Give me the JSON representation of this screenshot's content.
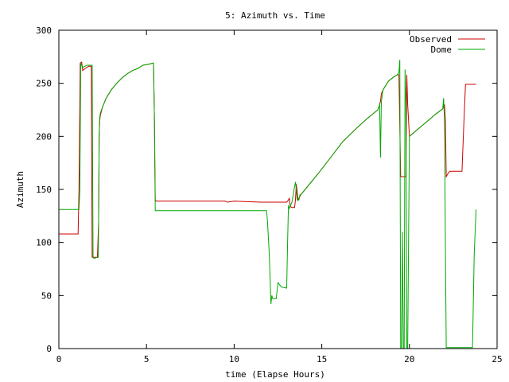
{
  "chart_data": {
    "type": "line",
    "title": "5: Azimuth vs. Time",
    "xlabel": "time (Elapse Hours)",
    "ylabel": "Azimuth",
    "xlim": [
      0,
      25
    ],
    "ylim": [
      0,
      300
    ],
    "xticks": [
      0,
      5,
      10,
      15,
      20,
      25
    ],
    "yticks": [
      0,
      50,
      100,
      150,
      200,
      250,
      300
    ],
    "grid": false,
    "legend_position": "top-right",
    "series": [
      {
        "name": "Observed",
        "color": "#cc0000",
        "x": [
          0,
          1.1,
          1.15,
          1.22,
          1.3,
          1.36,
          1.43,
          1.5,
          1.6,
          1.7,
          1.85,
          1.9,
          1.95,
          2.05,
          2.1,
          2.2,
          2.27,
          2.3,
          2.33,
          2.37,
          2.5,
          2.7,
          3.0,
          3.3,
          3.6,
          3.9,
          4.2,
          4.5,
          4.8,
          5.1,
          5.4,
          5.45,
          5.5,
          5.55,
          5.6,
          7,
          9.5,
          9.6,
          10,
          11.5,
          13.0,
          13.1,
          13.15,
          13.2,
          13.3,
          13.45,
          13.5,
          13.55,
          13.65,
          13.8,
          14.2,
          14.8,
          15.5,
          16.2,
          17.0,
          17.6,
          18.2,
          18.3,
          18.35,
          18.4,
          18.5,
          18.8,
          19.1,
          19.3,
          19.4,
          19.5,
          19.6,
          19.75,
          19.8,
          19.85,
          19.9,
          20.0,
          20.5,
          21.0,
          21.5,
          21.9,
          21.95,
          22.0,
          22.05,
          22.1,
          22.2,
          22.3,
          22.5,
          22.8,
          23.0,
          23.1,
          23.2,
          23.5,
          23.8
        ],
        "y": [
          108,
          108,
          150,
          269,
          270,
          262,
          263,
          264,
          265,
          266,
          266,
          86,
          86,
          86,
          86,
          86,
          120,
          200,
          215,
          220,
          228,
          236,
          244,
          250,
          255,
          259,
          262,
          264,
          267,
          268,
          269,
          220,
          140,
          139,
          139,
          139,
          139,
          138,
          139,
          138,
          138,
          140,
          142,
          134,
          133,
          133,
          140,
          155,
          140,
          145,
          153,
          165,
          180,
          195,
          208,
          217,
          225,
          230,
          233,
          240,
          244,
          252,
          256,
          258,
          258,
          162,
          162,
          162,
          162,
          258,
          230,
          200,
          207,
          214,
          221,
          226,
          228,
          230,
          215,
          162,
          165,
          167,
          167,
          167,
          167,
          210,
          249,
          249,
          249
        ]
      },
      {
        "name": "Dome",
        "color": "#00aa00",
        "x": [
          0,
          1.1,
          1.15,
          1.2,
          1.25,
          1.35,
          1.6,
          1.9,
          1.95,
          2.0,
          2.2,
          2.25,
          2.27,
          2.3,
          2.33,
          2.37,
          2.5,
          2.7,
          3.0,
          3.3,
          3.6,
          3.9,
          4.2,
          4.5,
          4.8,
          5.1,
          5.4,
          5.45,
          5.5,
          5.55,
          5.6,
          7,
          11.85,
          11.9,
          12.0,
          12.1,
          12.15,
          12.2,
          12.4,
          12.5,
          12.6,
          12.7,
          13.0,
          13.05,
          13.1,
          13.15,
          13.2,
          13.3,
          13.4,
          13.5,
          13.55,
          13.6,
          13.7,
          13.75,
          13.8,
          14.2,
          14.8,
          15.5,
          16.2,
          17.0,
          17.6,
          18.2,
          18.3,
          18.35,
          18.4,
          18.5,
          18.8,
          19.1,
          19.3,
          19.4,
          19.45,
          19.5,
          19.55,
          19.6,
          19.65,
          19.7,
          19.75,
          19.8,
          19.85,
          19.9,
          20.0,
          20.5,
          21.0,
          21.5,
          21.9,
          21.95,
          22.0,
          22.05,
          22.1,
          22.15,
          22.2,
          23.0,
          23.6,
          23.7,
          23.8
        ],
        "y": [
          131,
          131,
          131,
          150,
          269,
          265,
          267,
          267,
          86,
          85,
          86,
          86,
          120,
          200,
          218,
          222,
          228,
          236,
          244,
          250,
          255,
          259,
          262,
          264,
          267,
          268,
          269,
          220,
          130,
          130,
          130,
          130,
          130,
          120,
          90,
          42,
          50,
          47,
          47,
          62,
          60,
          58,
          57,
          100,
          135,
          132,
          134,
          138,
          148,
          157,
          150,
          140,
          140,
          145,
          145,
          153,
          165,
          180,
          195,
          208,
          217,
          225,
          230,
          180,
          233,
          244,
          252,
          256,
          258,
          260,
          272,
          0,
          0,
          110,
          0,
          0,
          263,
          230,
          0,
          0,
          200,
          207,
          214,
          221,
          226,
          236,
          215,
          100,
          1,
          1,
          1,
          1,
          1,
          90,
          131
        ]
      }
    ]
  }
}
